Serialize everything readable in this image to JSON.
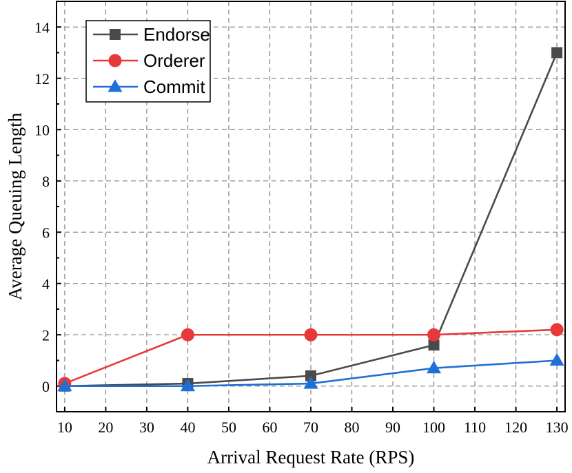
{
  "chart_data": {
    "type": "line",
    "xlabel": "Arrival Request Rate (RPS)",
    "ylabel": "Average Queuing Length",
    "xlim": [
      8,
      132
    ],
    "ylim": [
      -1,
      15
    ],
    "xticks": [
      10,
      20,
      30,
      40,
      50,
      60,
      70,
      80,
      90,
      100,
      110,
      120,
      130
    ],
    "yticks": [
      0,
      2,
      4,
      6,
      8,
      10,
      12,
      14
    ],
    "x": [
      10,
      40,
      70,
      100,
      130
    ],
    "grid": true,
    "legend_position": "top-left",
    "series": [
      {
        "name": "Endorse",
        "values": [
          0,
          0.1,
          0.4,
          1.6,
          13
        ],
        "color": "#4a4a4a",
        "marker": "square"
      },
      {
        "name": "Orderer",
        "values": [
          0.1,
          2,
          2,
          2,
          2.2
        ],
        "color": "#e8393a",
        "marker": "circle"
      },
      {
        "name": "Commit",
        "values": [
          0,
          0,
          0.1,
          0.7,
          1.0
        ],
        "color": "#1f6fd6",
        "marker": "triangle"
      }
    ]
  }
}
